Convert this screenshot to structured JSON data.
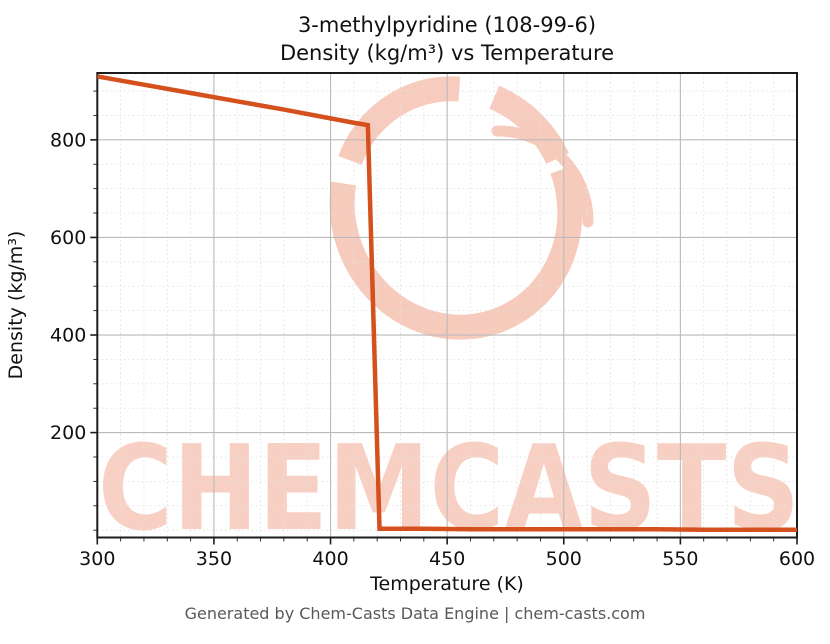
{
  "chart": {
    "title_line1": "3-methylpyridine (108-99-6)",
    "title_line2": "Density (kg/m³) vs Temperature",
    "footer": "Generated by Chem-Casts Data Engine | chem-casts.com",
    "watermark_text": "CHEMCASTS",
    "colors": {
      "line": "#d4511e",
      "major_grid": "#bababa",
      "minor_grid": "#e1e1e1",
      "spine": "#1c1c1c",
      "tick_label": "#111111",
      "title_text": "#111111",
      "footer_text": "#595959",
      "watermark": "#f0987c"
    }
  },
  "chart_data": {
    "type": "line",
    "title": "3-methylpyridine (108-99-6) — Density (kg/m³) vs Temperature",
    "xlabel": "Temperature (K)",
    "ylabel": "Density (kg/m³)",
    "xlim": [
      300,
      600
    ],
    "ylim": [
      -15,
      937
    ],
    "xticks": [
      300,
      350,
      400,
      450,
      500,
      550,
      600
    ],
    "yticks": [
      200,
      400,
      600,
      800
    ],
    "x_minor_step": 10,
    "y_minor_step": 50,
    "grid": true,
    "legend": false,
    "series": [
      {
        "name": "Density (kg/m³)",
        "x": [
          300,
          320,
          340,
          360,
          380,
          400,
          410,
          416,
          421,
          440,
          460,
          480,
          500,
          520,
          540,
          560,
          580,
          600
        ],
        "y": [
          930,
          913,
          896,
          879,
          862,
          844,
          835,
          830,
          3,
          3,
          2,
          2,
          2,
          2,
          2,
          1,
          1,
          1
        ]
      }
    ]
  }
}
